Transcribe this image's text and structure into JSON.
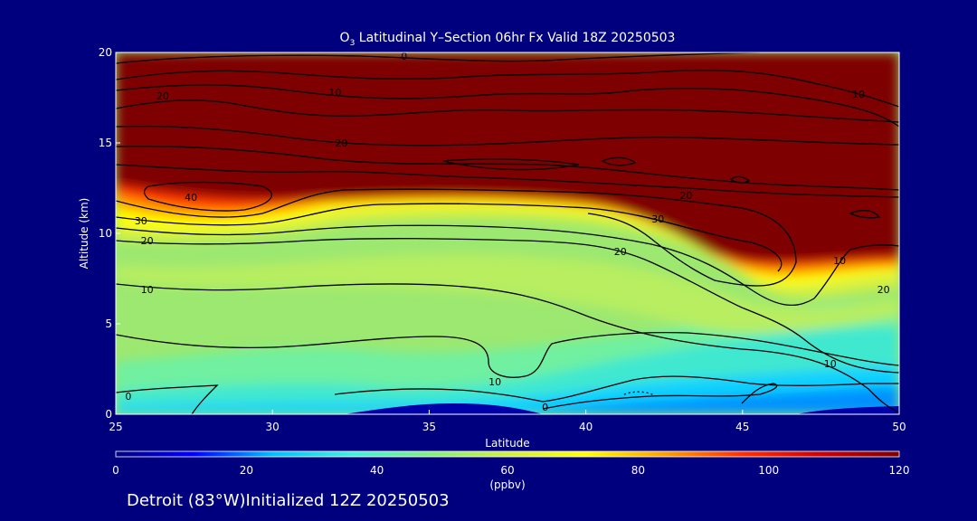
{
  "chart_data": {
    "type": "heatmap",
    "title_prefix": "O",
    "title_subscript": "3",
    "title_rest": " Latitudinal Y–Section 06hr  Fx Valid 18Z 20250503",
    "xlabel": "Latitude",
    "ylabel": "Altitude (km)",
    "xlim": [
      25,
      50
    ],
    "ylim": [
      0,
      20
    ],
    "xticks": [
      "25",
      "30",
      "35",
      "40",
      "45",
      "50"
    ],
    "yticks": [
      "0",
      "5",
      "10",
      "15",
      "20"
    ],
    "colorbar": {
      "ticks": [
        "0",
        "20",
        "40",
        "60",
        "80",
        "100",
        "120"
      ],
      "range": [
        0,
        120
      ],
      "unit": "(ppbv)",
      "colors": [
        "#00007f",
        "#0000ff",
        "#00bfff",
        "#40f0e0",
        "#80f080",
        "#d0f040",
        "#ffff00",
        "#ffa000",
        "#ff3000",
        "#d00000",
        "#7f0000"
      ]
    },
    "contour_labels": [
      {
        "text": "0",
        "lat": 34.2,
        "alt": 19.8
      },
      {
        "text": "10",
        "lat": 32.0,
        "alt": 17.8
      },
      {
        "text": "20",
        "lat": 26.5,
        "alt": 17.6
      },
      {
        "text": "10",
        "lat": 48.7,
        "alt": 17.7
      },
      {
        "text": "20",
        "lat": 32.2,
        "alt": 15.0
      },
      {
        "text": "40",
        "lat": 27.4,
        "alt": 12.0
      },
      {
        "text": "30",
        "lat": 25.8,
        "alt": 10.7
      },
      {
        "text": "20",
        "lat": 26.0,
        "alt": 9.6
      },
      {
        "text": "20",
        "lat": 43.2,
        "alt": 12.1
      },
      {
        "text": "30",
        "lat": 42.3,
        "alt": 10.8
      },
      {
        "text": "20",
        "lat": 41.1,
        "alt": 9.0
      },
      {
        "text": "10",
        "lat": 26.0,
        "alt": 6.9
      },
      {
        "text": "10",
        "lat": 37.1,
        "alt": 1.8
      },
      {
        "text": "0",
        "lat": 25.4,
        "alt": 1.0
      },
      {
        "text": "0",
        "lat": 38.7,
        "alt": 0.4
      },
      {
        "text": "10",
        "lat": 47.8,
        "alt": 2.8
      },
      {
        "text": "20",
        "lat": 49.5,
        "alt": 6.9
      },
      {
        "text": "10",
        "lat": 48.1,
        "alt": 8.5
      }
    ]
  },
  "footer": "Detroit (83°W)Initialized 12Z 20250503"
}
